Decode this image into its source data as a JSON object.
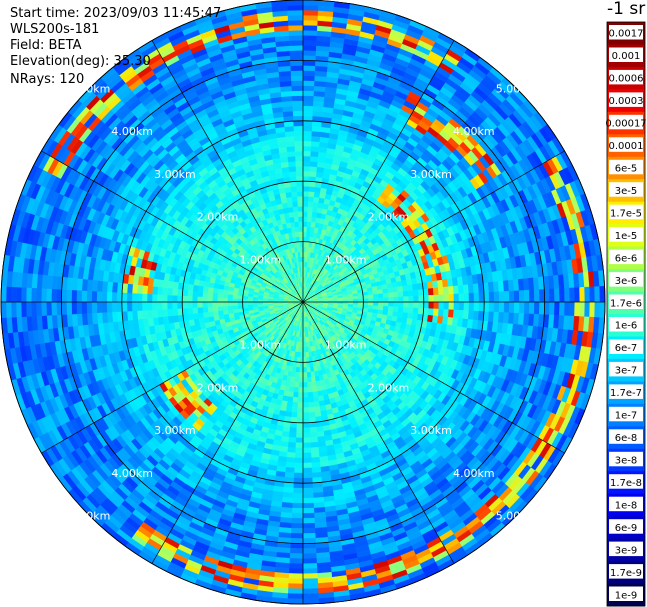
{
  "header": {
    "start_time": "Start time: 2023/09/03 11:45:47",
    "instrument": "WLS200s-181",
    "field": "Field: BETA",
    "elevation": "Elevation(deg): 35.30",
    "nrays": "NRays: 120"
  },
  "colorbar": {
    "unit_label": "-1 sr",
    "labels": [
      "0.0017",
      "0.001",
      "0.0006",
      "0.0003",
      "0.00017",
      "0.0001",
      "6e-5",
      "3e-5",
      "1.7e-5",
      "1e-5",
      "6e-6",
      "3e-6",
      "1.7e-6",
      "1e-6",
      "6e-7",
      "3e-7",
      "1.7e-7",
      "1e-7",
      "6e-8",
      "3e-8",
      "1.7e-8",
      "1e-8",
      "6e-9",
      "3e-9",
      "1.7e-9",
      "1e-9"
    ],
    "colors": [
      "#7f0000",
      "#a00000",
      "#c80000",
      "#ee0000",
      "#ff3000",
      "#ff6000",
      "#ff8f00",
      "#ffbf00",
      "#ffee00",
      "#e0ff17",
      "#b0ff47",
      "#7fff7a",
      "#4fffaa",
      "#2affd4",
      "#00ecff",
      "#00c8ff",
      "#00a4ff",
      "#0080ff",
      "#005cff",
      "#0038ff",
      "#0014ff",
      "#0000f0",
      "#0000c8",
      "#0000a4",
      "#00007f",
      "#00004f"
    ]
  },
  "chart_data": {
    "type": "heatmap",
    "projection": "polar",
    "field": "BETA",
    "n_rays": 120,
    "elevation_deg": 35.3,
    "range_rings_km": [
      1,
      2,
      3,
      4,
      5
    ],
    "ring_labels": [
      "1.00km",
      "2.00km",
      "3.00km",
      "4.00km",
      "5.00km"
    ],
    "spokes": 12,
    "max_range_km": 5.0
  }
}
